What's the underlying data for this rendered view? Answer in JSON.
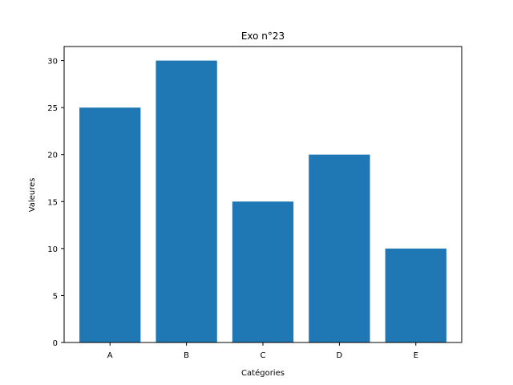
{
  "chart_data": {
    "type": "bar",
    "title": "Exo n°23",
    "xlabel": "Catégories",
    "ylabel": "Valeures",
    "categories": [
      "A",
      "B",
      "C",
      "D",
      "E"
    ],
    "values": [
      25,
      30,
      15,
      20,
      10
    ],
    "ylim": [
      0,
      31.5
    ],
    "yticks": [
      0,
      5,
      10,
      15,
      20,
      25,
      30
    ],
    "grid": false,
    "bar_color": "#1f77b4"
  }
}
